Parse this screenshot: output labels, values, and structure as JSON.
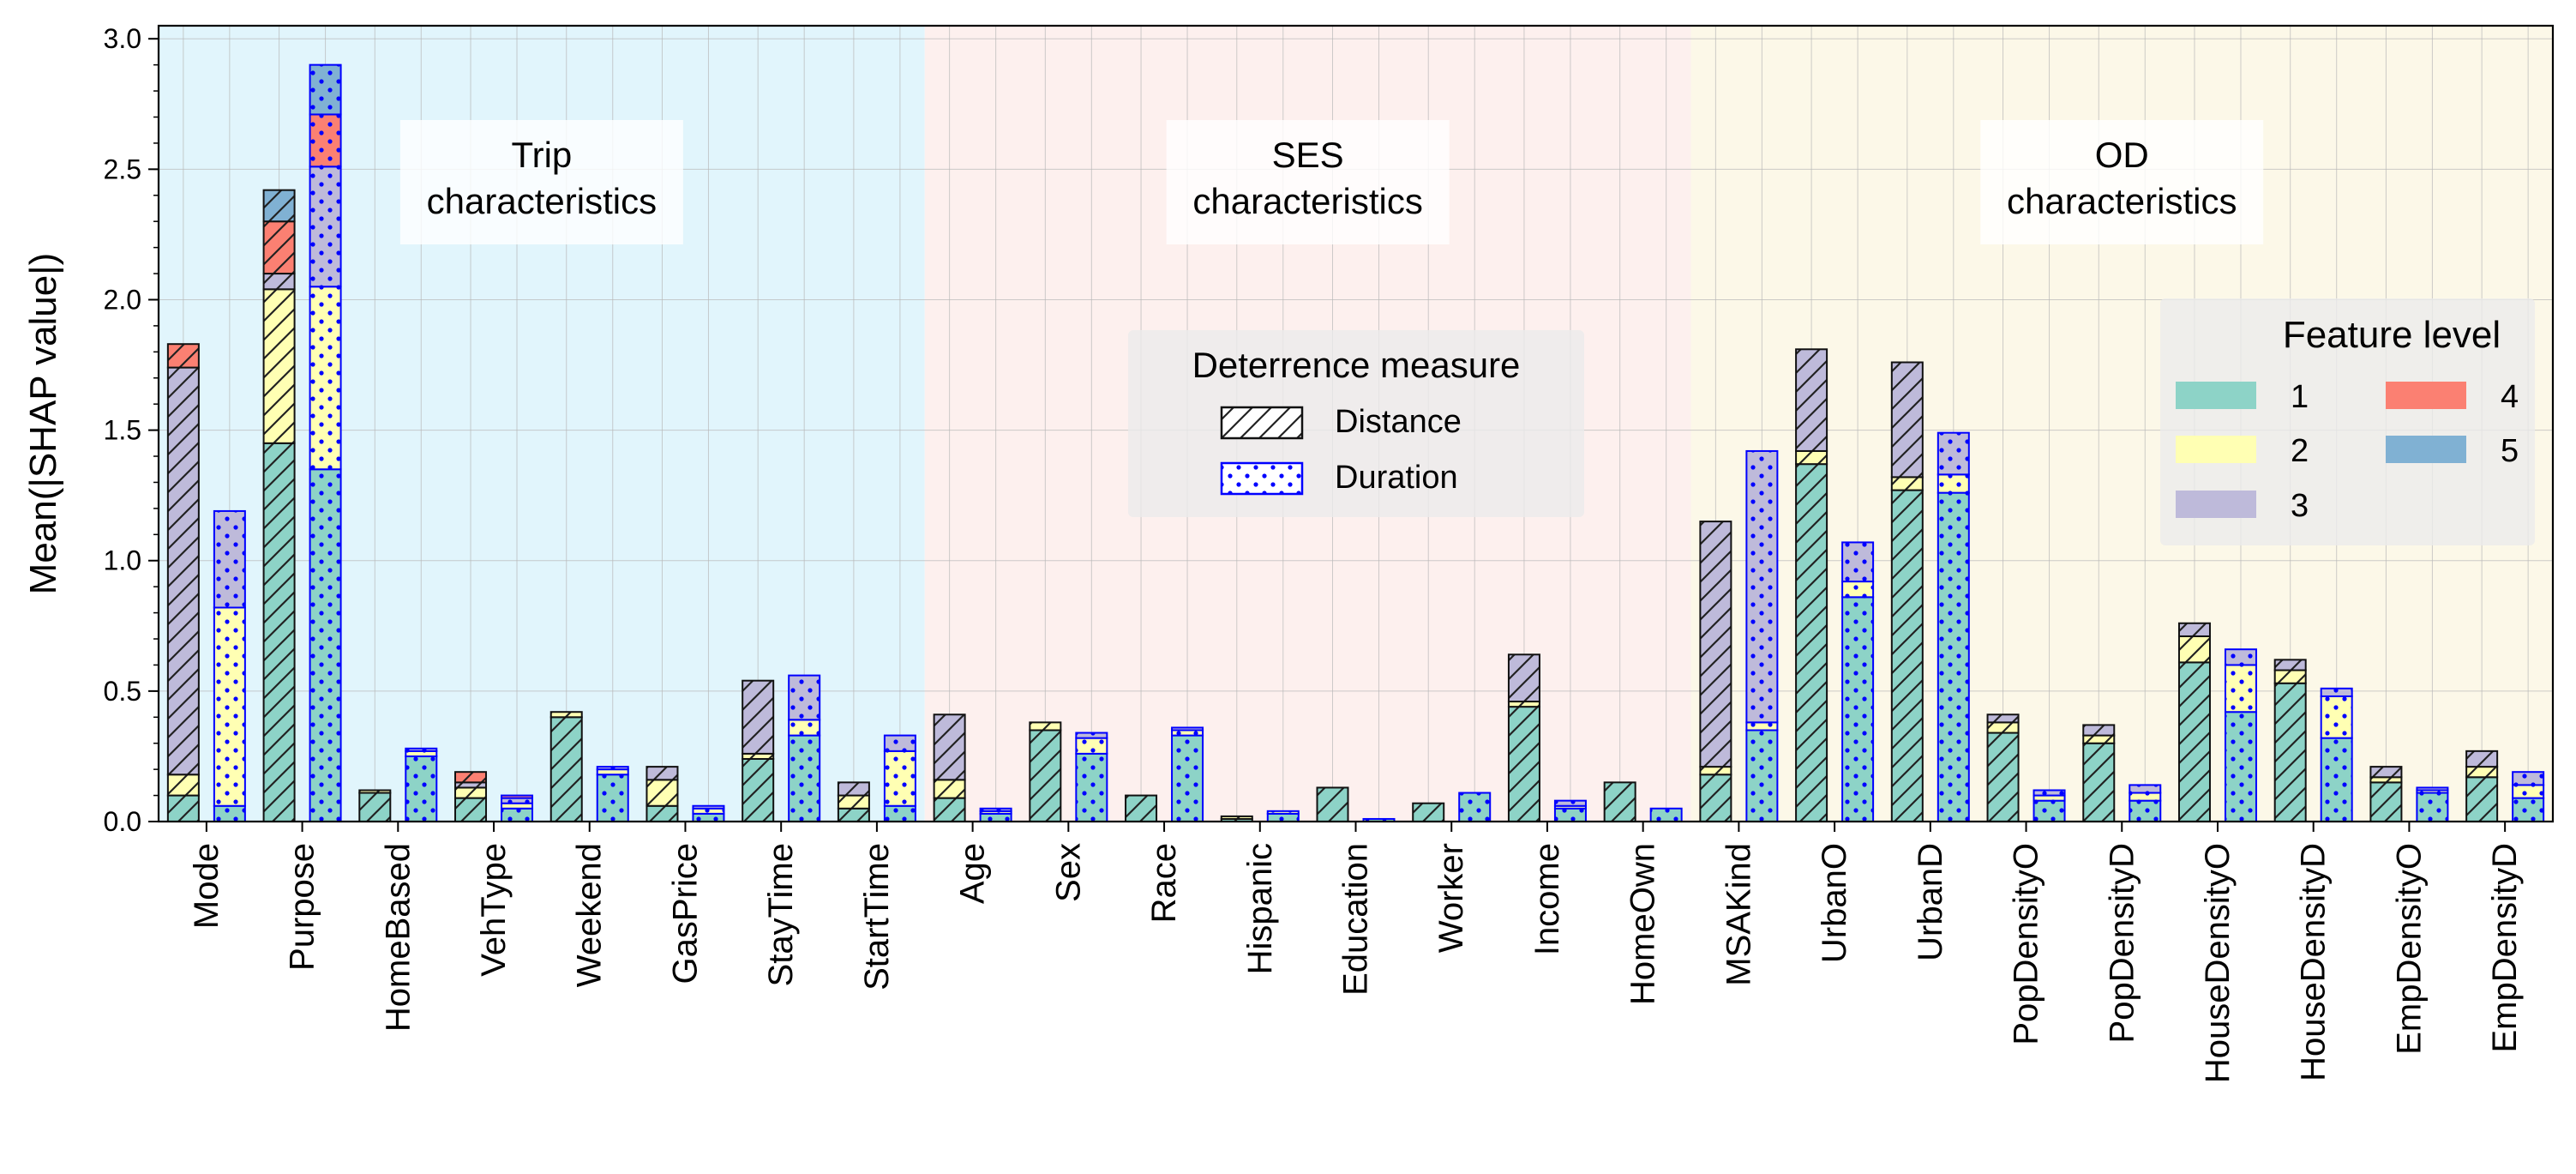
{
  "chart_data": {
    "type": "bar",
    "subtype": "stacked-grouped",
    "ylabel": "Mean(|SHAP value|)",
    "ylim": [
      0,
      3.05
    ],
    "yticks": [
      "0.0",
      "0.5",
      "1.0",
      "1.5",
      "2.0",
      "2.5",
      "3.0"
    ],
    "grid": true,
    "categories": [
      "Mode",
      "Purpose",
      "HomeBased",
      "VehType",
      "Weekend",
      "GasPrice",
      "StayTime",
      "StartTime",
      "Age",
      "Sex",
      "Race",
      "Hispanic",
      "Education",
      "Worker",
      "Income",
      "HomeOwn",
      "MSAKind",
      "UrbanO",
      "UrbanD",
      "PopDensityO",
      "PopDensityD",
      "HouseDensityO",
      "HouseDensityD",
      "EmpDensityO",
      "EmpDensityD"
    ],
    "groups": [
      {
        "label": "Trip\ncharacteristics",
        "from": 0,
        "to": 8,
        "color": "#e1f5fc"
      },
      {
        "label": "SES\ncharacteristics",
        "from": 8,
        "to": 16,
        "color": "#fdf0ee"
      },
      {
        "label": "OD\ncharacteristics",
        "from": 16,
        "to": 25,
        "color": "#fcf8e8"
      }
    ],
    "feature_levels": [
      "1",
      "2",
      "3",
      "4",
      "5"
    ],
    "level_colors": [
      "#8dd3c7",
      "#ffffb3",
      "#bebada",
      "#fb8072",
      "#80b1d3"
    ],
    "measures": [
      {
        "name": "Distance",
        "pattern": "hatch"
      },
      {
        "name": "Duration",
        "pattern": "dots"
      }
    ],
    "distance_values": [
      [
        0.1,
        0.08,
        1.56,
        0.09,
        0.0
      ],
      [
        1.45,
        0.59,
        0.06,
        0.2,
        0.12
      ],
      [
        0.11,
        0.01,
        0.0,
        0.0,
        0.0
      ],
      [
        0.09,
        0.04,
        0.02,
        0.04,
        0.0
      ],
      [
        0.4,
        0.02,
        0.0,
        0.0,
        0.0
      ],
      [
        0.06,
        0.1,
        0.05,
        0.0,
        0.0
      ],
      [
        0.24,
        0.02,
        0.28,
        0.0,
        0.0
      ],
      [
        0.05,
        0.05,
        0.05,
        0.0,
        0.0
      ],
      [
        0.09,
        0.07,
        0.25,
        0.0,
        0.0
      ],
      [
        0.35,
        0.03,
        0.0,
        0.0,
        0.0
      ],
      [
        0.1,
        0.0,
        0.0,
        0.0,
        0.0
      ],
      [
        0.01,
        0.01,
        0.0,
        0.0,
        0.0
      ],
      [
        0.13,
        0.0,
        0.0,
        0.0,
        0.0
      ],
      [
        0.07,
        0.0,
        0.0,
        0.0,
        0.0
      ],
      [
        0.44,
        0.02,
        0.18,
        0.0,
        0.0
      ],
      [
        0.15,
        0.0,
        0.0,
        0.0,
        0.0
      ],
      [
        0.18,
        0.03,
        0.94,
        0.0,
        0.0
      ],
      [
        1.37,
        0.05,
        0.39,
        0.0,
        0.0
      ],
      [
        1.27,
        0.05,
        0.44,
        0.0,
        0.0
      ],
      [
        0.34,
        0.04,
        0.03,
        0.0,
        0.0
      ],
      [
        0.3,
        0.03,
        0.04,
        0.0,
        0.0
      ],
      [
        0.61,
        0.1,
        0.05,
        0.0,
        0.0
      ],
      [
        0.53,
        0.05,
        0.04,
        0.0,
        0.0
      ],
      [
        0.15,
        0.02,
        0.04,
        0.0,
        0.0
      ],
      [
        0.17,
        0.04,
        0.06,
        0.0,
        0.0
      ]
    ],
    "duration_values": [
      [
        0.06,
        0.76,
        0.37,
        0.0,
        0.0
      ],
      [
        1.35,
        0.7,
        0.46,
        0.2,
        0.19
      ],
      [
        0.25,
        0.02,
        0.01,
        0.0,
        0.0
      ],
      [
        0.05,
        0.02,
        0.02,
        0.01,
        0.0
      ],
      [
        0.18,
        0.02,
        0.01,
        0.0,
        0.0
      ],
      [
        0.03,
        0.02,
        0.01,
        0.0,
        0.0
      ],
      [
        0.33,
        0.06,
        0.17,
        0.0,
        0.0
      ],
      [
        0.06,
        0.21,
        0.06,
        0.0,
        0.0
      ],
      [
        0.03,
        0.01,
        0.01,
        0.0,
        0.0
      ],
      [
        0.26,
        0.06,
        0.02,
        0.0,
        0.0
      ],
      [
        0.33,
        0.02,
        0.01,
        0.0,
        0.0
      ],
      [
        0.03,
        0.01,
        0.0,
        0.0,
        0.0
      ],
      [
        0.01,
        0.0,
        0.0,
        0.0,
        0.0
      ],
      [
        0.11,
        0.0,
        0.0,
        0.0,
        0.0
      ],
      [
        0.05,
        0.01,
        0.02,
        0.0,
        0.0
      ],
      [
        0.05,
        0.0,
        0.0,
        0.0,
        0.0
      ],
      [
        0.35,
        0.03,
        1.04,
        0.0,
        0.0
      ],
      [
        0.86,
        0.06,
        0.15,
        0.0,
        0.0
      ],
      [
        1.26,
        0.07,
        0.16,
        0.0,
        0.0
      ],
      [
        0.08,
        0.02,
        0.02,
        0.0,
        0.0
      ],
      [
        0.08,
        0.03,
        0.03,
        0.0,
        0.0
      ],
      [
        0.42,
        0.18,
        0.06,
        0.0,
        0.0
      ],
      [
        0.32,
        0.16,
        0.03,
        0.0,
        0.0
      ],
      [
        0.11,
        0.01,
        0.01,
        0.0,
        0.0
      ],
      [
        0.09,
        0.05,
        0.05,
        0.0,
        0.0
      ]
    ],
    "legend_measure": {
      "title": "Deterrence measure",
      "position": "top-center"
    },
    "legend_level": {
      "title": "Feature level",
      "position": "top-right"
    }
  }
}
